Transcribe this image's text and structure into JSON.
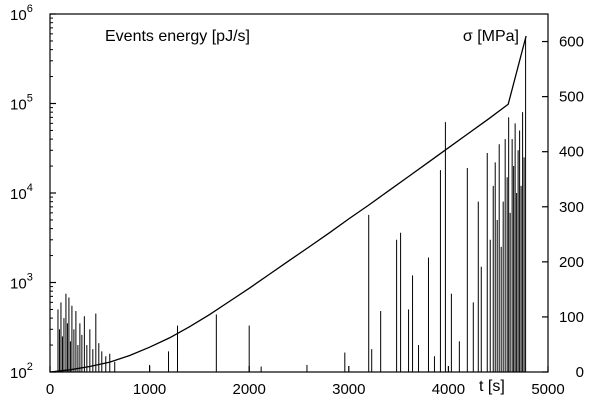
{
  "chart_data": {
    "type": "line",
    "x_axis": {
      "label": "t [s]",
      "range": [
        0,
        5000
      ],
      "ticks": [
        {
          "value": 0,
          "label": "0"
        },
        {
          "value": 1000,
          "label": "1000"
        },
        {
          "value": 2000,
          "label": "2000"
        },
        {
          "value": 3000,
          "label": "3000"
        },
        {
          "value": 4000,
          "label": "4000"
        },
        {
          "value": 5000,
          "label": "5000"
        }
      ]
    },
    "y_left": {
      "scale": "log",
      "range": [
        100,
        1000000
      ],
      "ticks": [
        {
          "value": 100,
          "base": "10",
          "exp": "2"
        },
        {
          "value": 1000,
          "base": "10",
          "exp": "3"
        },
        {
          "value": 10000,
          "base": "10",
          "exp": "4"
        },
        {
          "value": 100000,
          "base": "10",
          "exp": "5"
        },
        {
          "value": 1000000,
          "base": "10",
          "exp": "6"
        }
      ]
    },
    "y_right": {
      "scale": "linear",
      "range": [
        0,
        650
      ],
      "ticks": [
        {
          "value": 0,
          "label": "0"
        },
        {
          "value": 100,
          "label": "100"
        },
        {
          "value": 200,
          "label": "200"
        },
        {
          "value": 300,
          "label": "300"
        },
        {
          "value": 400,
          "label": "400"
        },
        {
          "value": 500,
          "label": "500"
        },
        {
          "value": 600,
          "label": "600"
        }
      ]
    },
    "series": [
      {
        "name": "Events energy [pJ/s]",
        "type": "spikes",
        "axis": "left",
        "color": "#000000",
        "points": [
          {
            "t": 80,
            "v": 500
          },
          {
            "t": 95,
            "v": 300
          },
          {
            "t": 110,
            "v": 600
          },
          {
            "t": 125,
            "v": 250
          },
          {
            "t": 140,
            "v": 400
          },
          {
            "t": 160,
            "v": 750
          },
          {
            "t": 175,
            "v": 350
          },
          {
            "t": 190,
            "v": 680
          },
          {
            "t": 205,
            "v": 220
          },
          {
            "t": 220,
            "v": 550
          },
          {
            "t": 240,
            "v": 300
          },
          {
            "t": 260,
            "v": 480
          },
          {
            "t": 280,
            "v": 200
          },
          {
            "t": 300,
            "v": 350
          },
          {
            "t": 320,
            "v": 260
          },
          {
            "t": 345,
            "v": 420
          },
          {
            "t": 370,
            "v": 200
          },
          {
            "t": 400,
            "v": 300
          },
          {
            "t": 430,
            "v": 180
          },
          {
            "t": 460,
            "v": 450
          },
          {
            "t": 490,
            "v": 210
          },
          {
            "t": 520,
            "v": 170
          },
          {
            "t": 560,
            "v": 150
          },
          {
            "t": 600,
            "v": 160
          },
          {
            "t": 650,
            "v": 130
          },
          {
            "t": 1000,
            "v": 120
          },
          {
            "t": 1190,
            "v": 170
          },
          {
            "t": 1280,
            "v": 330
          },
          {
            "t": 1670,
            "v": 440
          },
          {
            "t": 2000,
            "v": 330
          },
          {
            "t": 2120,
            "v": 115
          },
          {
            "t": 2580,
            "v": 120
          },
          {
            "t": 2960,
            "v": 165
          },
          {
            "t": 3200,
            "v": 5700
          },
          {
            "t": 3230,
            "v": 180
          },
          {
            "t": 3320,
            "v": 480
          },
          {
            "t": 3480,
            "v": 3000
          },
          {
            "t": 3520,
            "v": 3600
          },
          {
            "t": 3600,
            "v": 500
          },
          {
            "t": 3640,
            "v": 1200
          },
          {
            "t": 3700,
            "v": 200
          },
          {
            "t": 3800,
            "v": 1900
          },
          {
            "t": 3860,
            "v": 150
          },
          {
            "t": 3920,
            "v": 18000
          },
          {
            "t": 3970,
            "v": 62000
          },
          {
            "t": 4030,
            "v": 750
          },
          {
            "t": 4110,
            "v": 220
          },
          {
            "t": 4190,
            "v": 19000
          },
          {
            "t": 4250,
            "v": 600
          },
          {
            "t": 4300,
            "v": 8000
          },
          {
            "t": 4330,
            "v": 1500
          },
          {
            "t": 4390,
            "v": 28000
          },
          {
            "t": 4420,
            "v": 3000
          },
          {
            "t": 4450,
            "v": 12000
          },
          {
            "t": 4470,
            "v": 22000
          },
          {
            "t": 4490,
            "v": 5000
          },
          {
            "t": 4510,
            "v": 35000
          },
          {
            "t": 4530,
            "v": 2500
          },
          {
            "t": 4550,
            "v": 8000
          },
          {
            "t": 4570,
            "v": 40000
          },
          {
            "t": 4590,
            "v": 15000
          },
          {
            "t": 4605,
            "v": 70000
          },
          {
            "t": 4620,
            "v": 6000
          },
          {
            "t": 4640,
            "v": 40000
          },
          {
            "t": 4655,
            "v": 20000
          },
          {
            "t": 4670,
            "v": 60000
          },
          {
            "t": 4685,
            "v": 10000
          },
          {
            "t": 4700,
            "v": 30000
          },
          {
            "t": 4715,
            "v": 50000
          },
          {
            "t": 4730,
            "v": 12000
          },
          {
            "t": 4745,
            "v": 80000
          },
          {
            "t": 4760,
            "v": 25000
          },
          {
            "t": 4775,
            "v": 550000
          }
        ]
      },
      {
        "name": "σ [MPa]",
        "type": "line",
        "axis": "right",
        "color": "#000000",
        "x": [
          0,
          200,
          400,
          600,
          800,
          1000,
          1200,
          1400,
          1600,
          1800,
          2000,
          2200,
          2400,
          2600,
          2800,
          3000,
          3200,
          3400,
          3600,
          3800,
          4000,
          4200,
          4400,
          4600,
          4780
        ],
        "y": [
          0,
          4,
          10,
          18,
          30,
          45,
          62,
          82,
          104,
          128,
          152,
          177,
          202,
          227,
          252,
          278,
          303,
          329,
          355,
          381,
          407,
          433,
          459,
          486,
          610
        ]
      }
    ]
  }
}
